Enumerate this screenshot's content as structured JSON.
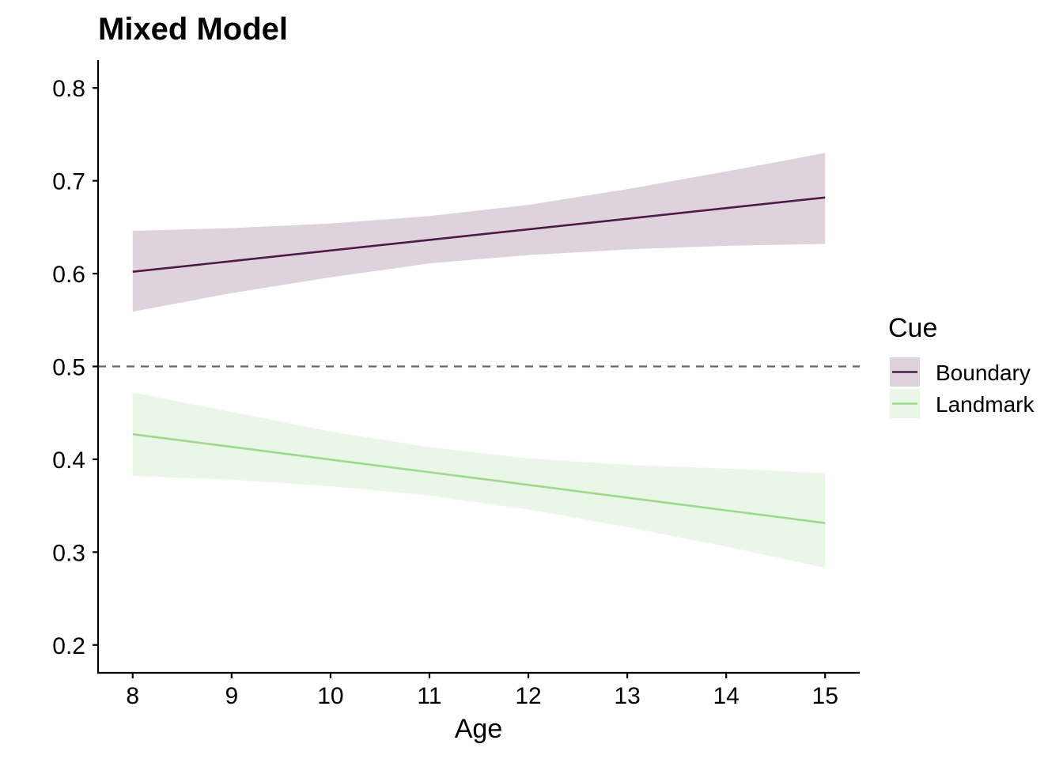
{
  "chart_data": {
    "type": "line",
    "title": "Mixed Model",
    "xlabel": "Age",
    "ylabel": "",
    "x": [
      8,
      9,
      10,
      11,
      12,
      13,
      14,
      15
    ],
    "xticks": [
      "8",
      "9",
      "10",
      "11",
      "12",
      "13",
      "14",
      "15"
    ],
    "yticks": [
      "0.2",
      "0.3",
      "0.4",
      "0.5",
      "0.6",
      "0.7",
      "0.8"
    ],
    "xlim": [
      7.65,
      15.35
    ],
    "ylim": [
      0.17,
      0.83
    ],
    "reference_line": {
      "y": 0.5,
      "style": "dashed",
      "color": "#666666"
    },
    "legend": {
      "title": "Cue",
      "position": "right"
    },
    "grid": false,
    "series": [
      {
        "name": "Boundary",
        "color": "#4d1a4a",
        "fill": "#ded2dc",
        "values": [
          0.602,
          0.6134,
          0.6249,
          0.6363,
          0.6477,
          0.6591,
          0.6706,
          0.682
        ],
        "lower": [
          0.559,
          0.579,
          0.596,
          0.611,
          0.62,
          0.626,
          0.63,
          0.632
        ],
        "upper": [
          0.646,
          0.649,
          0.654,
          0.662,
          0.674,
          0.691,
          0.71,
          0.73
        ]
      },
      {
        "name": "Landmark",
        "color": "#9ed98e",
        "fill": "#eaf6e7",
        "values": [
          0.427,
          0.4134,
          0.3997,
          0.3861,
          0.3724,
          0.3587,
          0.345,
          0.3313
        ],
        "lower": [
          0.382,
          0.378,
          0.371,
          0.361,
          0.346,
          0.327,
          0.306,
          0.283
        ],
        "upper": [
          0.472,
          0.451,
          0.43,
          0.413,
          0.401,
          0.394,
          0.39,
          0.385
        ]
      }
    ]
  }
}
